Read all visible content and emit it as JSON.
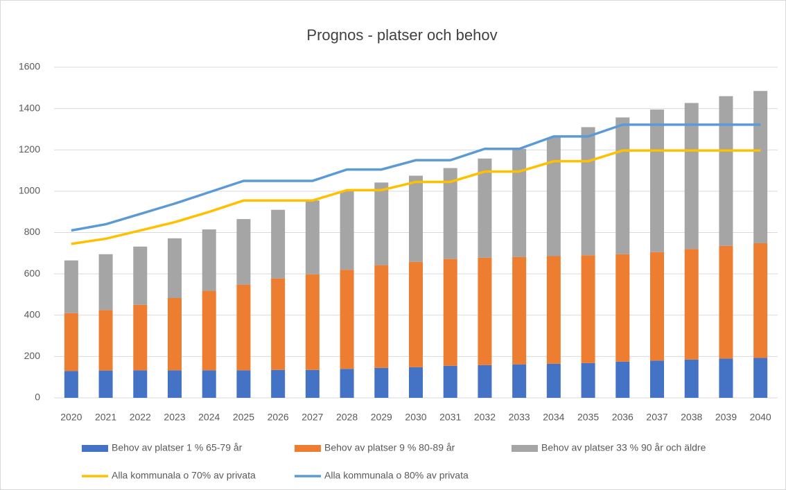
{
  "chart_data": {
    "type": "bar",
    "stacked": true,
    "title": "Prognos - platser och behov",
    "categories": [
      "2020",
      "2021",
      "2022",
      "2023",
      "2024",
      "2025",
      "2026",
      "2027",
      "2028",
      "2029",
      "2030",
      "2031",
      "2032",
      "2033",
      "2034",
      "2035",
      "2036",
      "2037",
      "2038",
      "2039",
      "2040"
    ],
    "ylim": [
      0,
      1600
    ],
    "yticks": [
      0,
      200,
      400,
      600,
      800,
      1000,
      1200,
      1400,
      1600
    ],
    "grid": true,
    "series": [
      {
        "name": "Behov av platser 1 % 65-79 år",
        "type": "bar",
        "color": "#4472c4",
        "values": [
          130,
          132,
          133,
          133,
          133,
          133,
          135,
          135,
          140,
          145,
          148,
          155,
          158,
          162,
          165,
          168,
          175,
          180,
          185,
          190,
          193
        ]
      },
      {
        "name": "Behov av platser 9 % 80-89 år",
        "type": "bar",
        "color": "#ed7d31",
        "values": [
          280,
          293,
          317,
          350,
          385,
          415,
          443,
          463,
          480,
          497,
          510,
          517,
          520,
          520,
          521,
          522,
          520,
          525,
          535,
          545,
          555
        ]
      },
      {
        "name": "Behov av platser 33 % 90 år och äldre",
        "type": "bar",
        "color": "#a5a5a5",
        "values": [
          255,
          270,
          282,
          289,
          297,
          317,
          332,
          357,
          380,
          400,
          417,
          440,
          480,
          523,
          574,
          620,
          662,
          690,
          707,
          725,
          737
        ]
      },
      {
        "name": "Alla kommunala o 70% av privata",
        "type": "line",
        "color": "#ffc000",
        "values": [
          745,
          770,
          810,
          850,
          900,
          955,
          955,
          955,
          1005,
          1005,
          1045,
          1045,
          1095,
          1095,
          1145,
          1145,
          1197,
          1197,
          1197,
          1197,
          1197
        ]
      },
      {
        "name": "Alla kommunala o 80% av privata",
        "type": "line",
        "color": "#5b9bd5",
        "values": [
          810,
          840,
          890,
          940,
          995,
          1050,
          1050,
          1050,
          1105,
          1105,
          1150,
          1150,
          1205,
          1205,
          1265,
          1265,
          1322,
          1322,
          1322,
          1322,
          1322
        ]
      }
    ]
  }
}
